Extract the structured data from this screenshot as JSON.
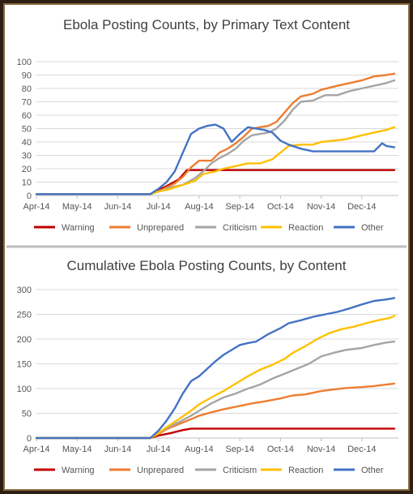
{
  "chart_data": [
    {
      "type": "line",
      "title": "Ebola Posting Counts, by Primary Text Content",
      "xlabel": "",
      "ylabel": "",
      "x_ticks": [
        "Apr-14",
        "May-14",
        "Jun-14",
        "Jul-14",
        "Aug-14",
        "Sep-14",
        "Oct-14",
        "Nov-14",
        "Dec-14"
      ],
      "x_range": [
        0,
        8.9
      ],
      "ylim": [
        0,
        100
      ],
      "y_ticks": [
        0,
        10,
        20,
        30,
        40,
        50,
        60,
        70,
        80,
        90,
        100
      ],
      "grid": true,
      "legend": "bottom",
      "series": [
        {
          "name": "Warning",
          "color": "#c00000",
          "x": [
            0,
            2.8,
            3.2,
            3.5,
            3.7,
            3.8,
            4.1,
            8.8
          ],
          "y": [
            1,
            1,
            7,
            12,
            19,
            19,
            19,
            19
          ]
        },
        {
          "name": "Unprepared",
          "color": "#ed7d31",
          "x": [
            0,
            2.8,
            3.0,
            3.2,
            3.4,
            3.6,
            3.8,
            4.0,
            4.3,
            4.5,
            4.7,
            4.9,
            5.1,
            5.3,
            5.5,
            5.7,
            5.9,
            6.1,
            6.3,
            6.5,
            6.8,
            7.0,
            7.4,
            7.7,
            8.0,
            8.3,
            8.6,
            8.8
          ],
          "y": [
            1,
            1,
            3,
            6,
            9,
            14,
            21,
            26,
            26,
            32,
            35,
            39,
            44,
            50,
            51,
            52,
            55,
            62,
            69,
            74,
            76,
            79,
            82,
            84,
            86,
            89,
            90,
            91
          ]
        },
        {
          "name": "Criticism",
          "color": "#a5a5a5",
          "x": [
            0,
            2.8,
            3.0,
            3.3,
            3.6,
            3.9,
            4.1,
            4.3,
            4.5,
            4.7,
            4.9,
            5.1,
            5.3,
            5.5,
            5.7,
            5.9,
            6.1,
            6.3,
            6.5,
            6.8,
            7.1,
            7.4,
            7.7,
            8.0,
            8.3,
            8.6,
            8.8
          ],
          "y": [
            1,
            1,
            3,
            6,
            8,
            13,
            18,
            24,
            28,
            31,
            35,
            41,
            45,
            46,
            47,
            50,
            56,
            64,
            70,
            71,
            75,
            75,
            78,
            80,
            82,
            84,
            86
          ]
        },
        {
          "name": "Reaction",
          "color": "#ffc000",
          "x": [
            0,
            2.8,
            3.0,
            3.3,
            3.6,
            3.9,
            4.1,
            4.4,
            4.6,
            4.9,
            5.2,
            5.5,
            5.8,
            6.0,
            6.2,
            6.5,
            6.8,
            7.0,
            7.3,
            7.6,
            8.0,
            8.3,
            8.6,
            8.8
          ],
          "y": [
            1,
            1,
            3,
            5,
            8,
            11,
            16,
            18,
            20,
            22,
            24,
            24,
            27,
            32,
            37,
            38,
            38,
            40,
            41,
            42,
            45,
            47,
            49,
            51
          ]
        },
        {
          "name": "Other",
          "color": "#4472c4",
          "x": [
            0,
            2.8,
            3.0,
            3.2,
            3.4,
            3.6,
            3.8,
            4.0,
            4.2,
            4.4,
            4.6,
            4.8,
            5.0,
            5.2,
            5.4,
            5.6,
            5.8,
            6.0,
            6.2,
            6.5,
            6.8,
            7.1,
            7.4,
            7.7,
            7.9,
            8.1,
            8.3,
            8.5,
            8.6,
            8.8
          ],
          "y": [
            1,
            1,
            5,
            10,
            18,
            32,
            46,
            50,
            52,
            53,
            50,
            40,
            46,
            51,
            50,
            49,
            47,
            41,
            38,
            35,
            33,
            33,
            33,
            33,
            33,
            33,
            33,
            39,
            37,
            36
          ]
        }
      ]
    },
    {
      "type": "line",
      "title": "Cumulative Ebola Posting Counts, by Content",
      "xlabel": "",
      "ylabel": "",
      "x_ticks": [
        "Apr-14",
        "May-14",
        "Jun-14",
        "Jul-14",
        "Aug-14",
        "Sep-14",
        "Oct-14",
        "Nov-14",
        "Dec-14"
      ],
      "x_range": [
        0,
        8.9
      ],
      "ylim": [
        0,
        300
      ],
      "y_ticks": [
        0,
        50,
        100,
        150,
        200,
        250,
        300
      ],
      "grid": true,
      "legend": "bottom",
      "series": [
        {
          "name": "Warning",
          "color": "#c00000",
          "x": [
            0,
            2.8,
            3.0,
            3.3,
            3.6,
            3.8,
            4.0,
            4.2,
            8.8
          ],
          "y": [
            0,
            0,
            5,
            10,
            16,
            19,
            19,
            19,
            19
          ]
        },
        {
          "name": "Unprepared",
          "color": "#ed7d31",
          "x": [
            0,
            2.8,
            3.0,
            3.2,
            3.5,
            3.8,
            4.0,
            4.3,
            4.6,
            5.0,
            5.3,
            5.6,
            6.0,
            6.3,
            6.6,
            7.0,
            7.3,
            7.6,
            8.0,
            8.3,
            8.6,
            8.8
          ],
          "y": [
            0,
            0,
            8,
            18,
            28,
            38,
            45,
            52,
            58,
            65,
            70,
            74,
            80,
            86,
            88,
            95,
            98,
            101,
            103,
            105,
            108,
            110
          ]
        },
        {
          "name": "Criticism",
          "color": "#a5a5a5",
          "x": [
            0,
            2.8,
            3.0,
            3.2,
            3.5,
            3.8,
            4.0,
            4.3,
            4.6,
            4.9,
            5.2,
            5.5,
            5.8,
            6.1,
            6.4,
            6.7,
            7.0,
            7.3,
            7.6,
            8.0,
            8.3,
            8.6,
            8.8
          ],
          "y": [
            0,
            0,
            10,
            20,
            32,
            45,
            55,
            70,
            82,
            90,
            100,
            108,
            120,
            130,
            140,
            150,
            165,
            172,
            178,
            182,
            188,
            193,
            195
          ]
        },
        {
          "name": "Reaction",
          "color": "#ffc000",
          "x": [
            0,
            2.8,
            3.0,
            3.2,
            3.5,
            3.8,
            4.0,
            4.3,
            4.6,
            4.9,
            5.2,
            5.5,
            5.8,
            6.1,
            6.3,
            6.6,
            6.9,
            7.2,
            7.5,
            7.8,
            8.1,
            8.4,
            8.7,
            8.8
          ],
          "y": [
            0,
            0,
            10,
            22,
            38,
            55,
            68,
            82,
            95,
            110,
            125,
            138,
            148,
            160,
            172,
            185,
            200,
            212,
            220,
            225,
            232,
            238,
            243,
            247
          ]
        },
        {
          "name": "Other",
          "color": "#4472c4",
          "x": [
            0,
            2.8,
            3.0,
            3.2,
            3.4,
            3.6,
            3.8,
            4.0,
            4.2,
            4.4,
            4.6,
            4.8,
            5.0,
            5.2,
            5.4,
            5.7,
            6.0,
            6.2,
            6.5,
            6.8,
            7.1,
            7.4,
            7.7,
            8.0,
            8.3,
            8.6,
            8.8
          ],
          "y": [
            0,
            0,
            15,
            35,
            60,
            90,
            115,
            125,
            140,
            155,
            168,
            178,
            188,
            192,
            195,
            210,
            222,
            232,
            238,
            245,
            250,
            255,
            262,
            270,
            277,
            280,
            283
          ]
        }
      ]
    }
  ]
}
